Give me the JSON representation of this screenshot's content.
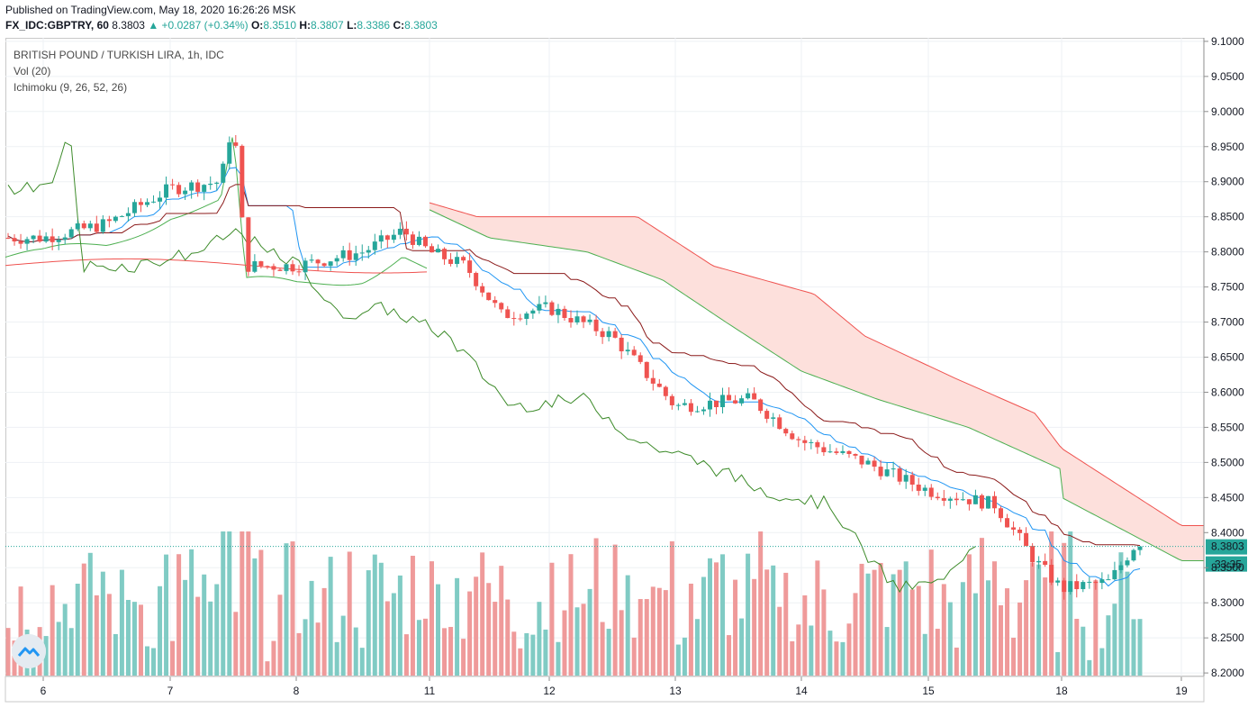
{
  "header": {
    "published": "Published on TradingView.com, May 18, 2020 16:26:26 MSK",
    "symbol": "FX_IDC:GBPTRY, 60",
    "last": "8.3803",
    "change": "+0.0287 (+0.34%)",
    "o_label": "O:",
    "o": "8.3510",
    "h_label": "H:",
    "h": "8.3807",
    "l_label": "L:",
    "l": "8.3386",
    "c_label": "C:",
    "c": "8.3803"
  },
  "legend": {
    "title": "BRITISH POUND / TURKISH LIRA, 1h, IDC",
    "vol": "Vol (20)",
    "ichimoku": "Ichimoku (9, 26, 52, 26)"
  },
  "price_label": "8.3803",
  "countdown": "33:35",
  "colors": {
    "up": "#26a69a",
    "down": "#ef5350",
    "tenkan": "#2196f3",
    "kijun": "#8b1a1a",
    "chikou": "#3d8b2a",
    "span_a": "#4caf50",
    "span_b": "#ef5350",
    "cloud_bull": "#c8e6c9",
    "cloud_bear": "#fde0dc",
    "vol_up": "#80cbc4",
    "vol_down": "#ef9a9a"
  },
  "chart_data": {
    "type": "candlestick",
    "title": "BRITISH POUND / TURKISH LIRA, 1h, IDC",
    "ylim": [
      8.195,
      9.105
    ],
    "y_ticks": [
      "9.1000",
      "9.0500",
      "9.0000",
      "8.9500",
      "8.9000",
      "8.8500",
      "8.8000",
      "8.7500",
      "8.7000",
      "8.6500",
      "8.6000",
      "8.5500",
      "8.5000",
      "8.4500",
      "8.4000",
      "8.3500",
      "8.3000",
      "8.2500",
      "8.2000"
    ],
    "x_ticks": [
      "6",
      "7",
      "8",
      "11",
      "12",
      "13",
      "14",
      "15",
      "18",
      "19"
    ],
    "close_keypoints": [
      {
        "x": "6",
        "y": 8.82
      },
      {
        "x": "6.5",
        "y": 8.84
      },
      {
        "x": "7",
        "y": 8.89
      },
      {
        "x": "7.4",
        "y": 8.9
      },
      {
        "x": "7.5",
        "y": 8.99
      },
      {
        "x": "7.6",
        "y": 8.78
      },
      {
        "x": "8",
        "y": 8.78
      },
      {
        "x": "8.5",
        "y": 8.8
      },
      {
        "x": "8.8",
        "y": 8.83
      },
      {
        "x": "11",
        "y": 8.8
      },
      {
        "x": "11.3",
        "y": 8.78
      },
      {
        "x": "11.6",
        "y": 8.71
      },
      {
        "x": "12",
        "y": 8.72
      },
      {
        "x": "12.5",
        "y": 8.68
      },
      {
        "x": "13",
        "y": 8.58
      },
      {
        "x": "13.6",
        "y": 8.59
      },
      {
        "x": "14",
        "y": 8.53
      },
      {
        "x": "14.5",
        "y": 8.5
      },
      {
        "x": "15",
        "y": 8.46
      },
      {
        "x": "15.5",
        "y": 8.44
      },
      {
        "x": "15.8",
        "y": 8.36
      },
      {
        "x": "18",
        "y": 8.32
      },
      {
        "x": "18.4",
        "y": 8.33
      },
      {
        "x": "18.6",
        "y": 8.3803
      }
    ],
    "cloud_span_b_keypoints": [
      {
        "x": "10.8",
        "y": 8.87
      },
      {
        "x": "11.4",
        "y": 8.85
      },
      {
        "x": "12.7",
        "y": 8.85
      },
      {
        "x": "13.3",
        "y": 8.78
      },
      {
        "x": "14.1",
        "y": 8.74
      },
      {
        "x": "14.5",
        "y": 8.68
      },
      {
        "x": "15.2",
        "y": 8.62
      },
      {
        "x": "15.8",
        "y": 8.57
      },
      {
        "x": "16.3",
        "y": 8.52
      },
      {
        "x": "19",
        "y": 8.41
      }
    ],
    "cloud_span_a_keypoints": [
      {
        "x": "10.8",
        "y": 8.86
      },
      {
        "x": "11.5",
        "y": 8.82
      },
      {
        "x": "12.3",
        "y": 8.8
      },
      {
        "x": "12.9",
        "y": 8.76
      },
      {
        "x": "13.4",
        "y": 8.7
      },
      {
        "x": "14.0",
        "y": 8.63
      },
      {
        "x": "14.6",
        "y": 8.59
      },
      {
        "x": "15.3",
        "y": 8.55
      },
      {
        "x": "16.0",
        "y": 8.49
      },
      {
        "x": "16.6",
        "y": 8.45
      },
      {
        "x": "19",
        "y": 8.36
      }
    ]
  }
}
